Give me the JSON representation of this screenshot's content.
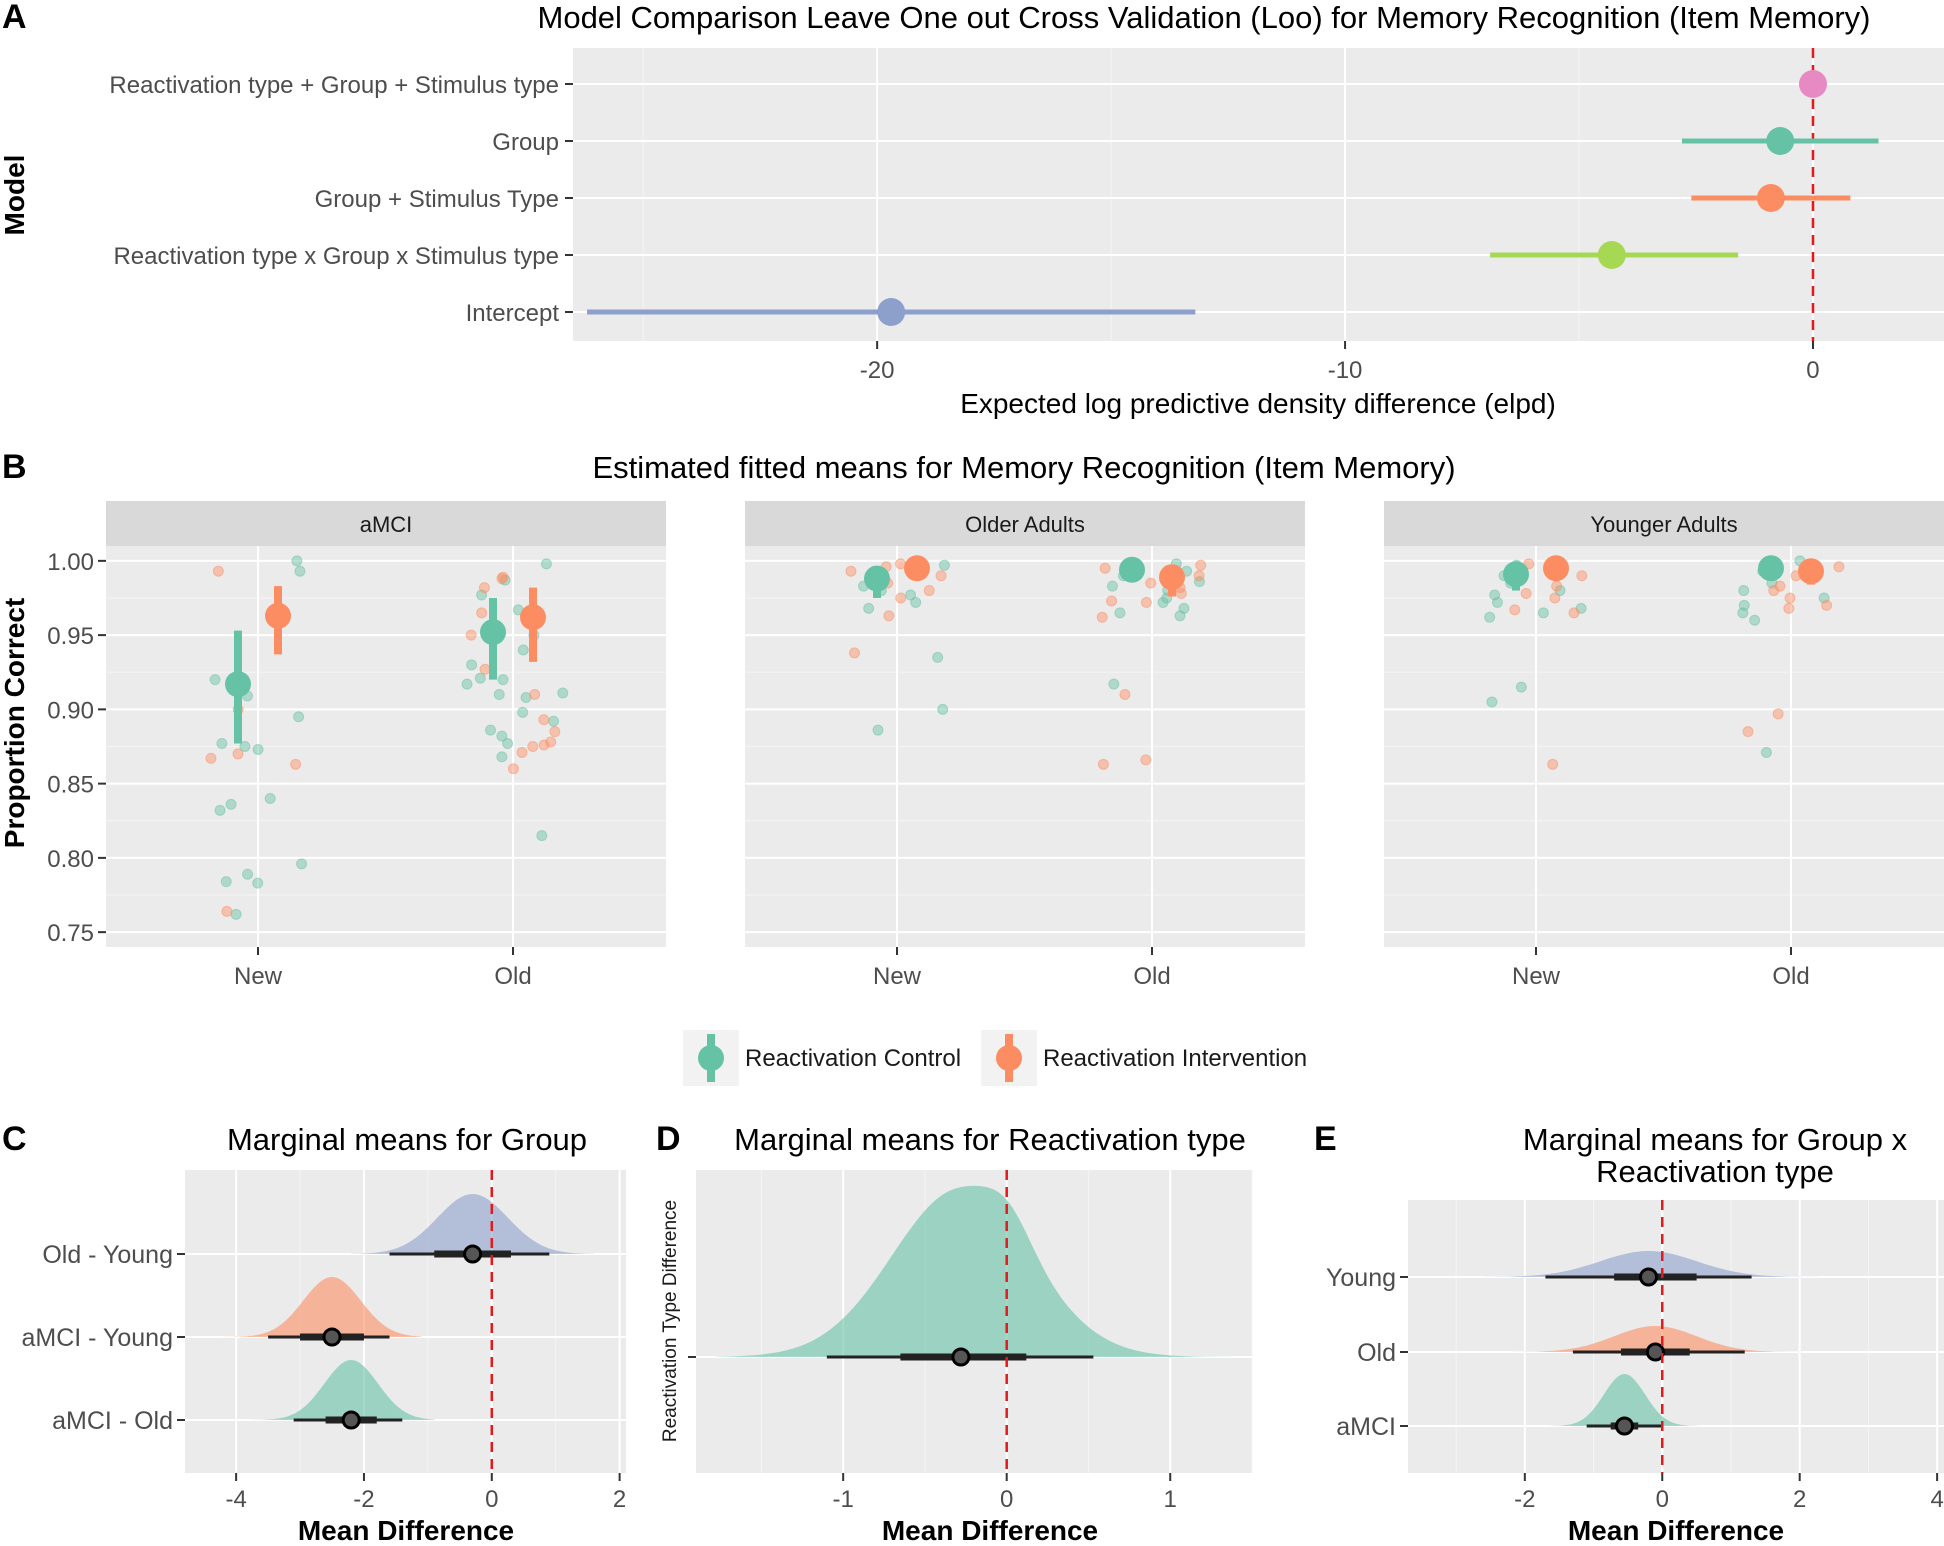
{
  "colors": {
    "control": "#66c2a5",
    "intervention": "#fc8d62",
    "panel_bg": "#ebebeb",
    "strip_bg": "#d9d9d9",
    "ref_line": "#e31a1c",
    "pink": "#e78ac3",
    "lime": "#a6d854",
    "blue": "#8da0cb"
  },
  "panel_a": {
    "letter": "A",
    "title": "Model Comparison Leave One out Cross Validation (Loo) for Memory Recognition (Item Memory)",
    "y_title": "Model",
    "x_title": "Expected log predictive density difference (elpd)",
    "x_ticks": [
      "-20",
      "-10",
      "0"
    ],
    "chart_data": {
      "type": "scatter",
      "title": "Model Comparison Leave One out Cross Validation (Loo) for Memory Recognition (Item Memory)",
      "xlabel": "Expected log predictive density difference (elpd)",
      "ylabel": "Model",
      "xlim": [
        -26.5,
        2.8
      ],
      "reference_line": 0,
      "models": [
        {
          "label": "Reactivation type + Group + Stimulus type",
          "estimate": 0.0,
          "lower": 0.0,
          "upper": 0.0,
          "color": "#e78ac3"
        },
        {
          "label": "Group",
          "estimate": -0.7,
          "lower": -2.8,
          "upper": 1.4,
          "color": "#66c2a5"
        },
        {
          "label": "Group + Stimulus Type",
          "estimate": -0.9,
          "lower": -2.6,
          "upper": 0.8,
          "color": "#fc8d62"
        },
        {
          "label": "Reactivation type x Group x Stimulus type",
          "estimate": -4.3,
          "lower": -6.9,
          "upper": -1.6,
          "color": "#a6d854"
        },
        {
          "label": "Intercept",
          "estimate": -19.7,
          "lower": -26.2,
          "upper": -13.2,
          "color": "#8da0cb"
        }
      ]
    }
  },
  "panel_b": {
    "letter": "B",
    "title": "Estimated fitted means for Memory Recognition (Item Memory)",
    "y_title": "Proportion Correct",
    "y_ticks": [
      "0.75",
      "0.80",
      "0.85",
      "0.90",
      "0.95",
      "1.00"
    ],
    "legend": {
      "control": "Reactivation Control",
      "intervention": "Reactivation Intervention"
    },
    "chart_data": {
      "type": "scatter",
      "title": "Estimated fitted means for Memory Recognition (Item Memory)",
      "ylabel": "Proportion Correct",
      "ylim": [
        0.74,
        1.01
      ],
      "categories": [
        "New",
        "Old"
      ],
      "series_names": [
        "Reactivation Control",
        "Reactivation Intervention"
      ],
      "facets": [
        {
          "label": "aMCI",
          "means": [
            {
              "stimulus": "New",
              "series": "Reactivation Control",
              "mean": 0.917,
              "lower": 0.877,
              "upper": 0.953
            },
            {
              "stimulus": "New",
              "series": "Reactivation Intervention",
              "mean": 0.963,
              "lower": 0.937,
              "upper": 0.983
            },
            {
              "stimulus": "Old",
              "series": "Reactivation Control",
              "mean": 0.952,
              "lower": 0.92,
              "upper": 0.975
            },
            {
              "stimulus": "Old",
              "series": "Reactivation Intervention",
              "mean": 0.962,
              "lower": 0.932,
              "upper": 0.982
            }
          ],
          "points": [
            {
              "stimulus": "New",
              "series": "Reactivation Control",
              "values": [
                1.0,
                0.993,
                0.92,
                0.909,
                0.895,
                0.877,
                0.875,
                0.873,
                0.84,
                0.836,
                0.832,
                0.796,
                0.789,
                0.784,
                0.783,
                0.762
              ]
            },
            {
              "stimulus": "New",
              "series": "Reactivation Intervention",
              "values": [
                0.993,
                0.968,
                0.9,
                0.87,
                0.867,
                0.863,
                0.764
              ]
            },
            {
              "stimulus": "Old",
              "series": "Reactivation Control",
              "values": [
                0.998,
                0.987,
                0.977,
                0.967,
                0.955,
                0.95,
                0.94,
                0.93,
                0.921,
                0.92,
                0.917,
                0.911,
                0.91,
                0.908,
                0.898,
                0.892,
                0.886,
                0.882,
                0.877,
                0.868,
                0.815
              ]
            },
            {
              "stimulus": "Old",
              "series": "Reactivation Intervention",
              "values": [
                0.989,
                0.988,
                0.982,
                0.965,
                0.962,
                0.95,
                0.927,
                0.91,
                0.893,
                0.885,
                0.878,
                0.876,
                0.875,
                0.871,
                0.86
              ]
            }
          ]
        },
        {
          "label": "Older Adults",
          "means": [
            {
              "stimulus": "New",
              "series": "Reactivation Control",
              "mean": 0.988,
              "lower": 0.975,
              "upper": 0.996
            },
            {
              "stimulus": "New",
              "series": "Reactivation Intervention",
              "mean": 0.995,
              "lower": 0.988,
              "upper": 0.999
            },
            {
              "stimulus": "Old",
              "series": "Reactivation Control",
              "mean": 0.994,
              "lower": 0.986,
              "upper": 0.998
            },
            {
              "stimulus": "Old",
              "series": "Reactivation Intervention",
              "mean": 0.989,
              "lower": 0.976,
              "upper": 0.997
            }
          ],
          "points": [
            {
              "stimulus": "New",
              "series": "Reactivation Control",
              "values": [
                0.997,
                0.993,
                0.987,
                0.983,
                0.98,
                0.977,
                0.972,
                0.968,
                0.935,
                0.9,
                0.886
              ]
            },
            {
              "stimulus": "New",
              "series": "Reactivation Intervention",
              "values": [
                0.998,
                0.996,
                0.993,
                0.99,
                0.985,
                0.98,
                0.975,
                0.963,
                0.938
              ]
            },
            {
              "stimulus": "Old",
              "series": "Reactivation Control",
              "values": [
                0.998,
                0.993,
                0.99,
                0.986,
                0.983,
                0.98,
                0.975,
                0.972,
                0.968,
                0.965,
                0.963,
                0.917
              ]
            },
            {
              "stimulus": "Old",
              "series": "Reactivation Intervention",
              "values": [
                0.997,
                0.995,
                0.99,
                0.985,
                0.982,
                0.978,
                0.973,
                0.972,
                0.962,
                0.91,
                0.866,
                0.863
              ]
            }
          ]
        },
        {
          "label": "Younger Adults",
          "means": [
            {
              "stimulus": "New",
              "series": "Reactivation Control",
              "mean": 0.991,
              "lower": 0.98,
              "upper": 0.997
            },
            {
              "stimulus": "New",
              "series": "Reactivation Intervention",
              "mean": 0.995,
              "lower": 0.988,
              "upper": 0.999
            },
            {
              "stimulus": "Old",
              "series": "Reactivation Control",
              "mean": 0.995,
              "lower": 0.988,
              "upper": 0.999
            },
            {
              "stimulus": "Old",
              "series": "Reactivation Intervention",
              "mean": 0.993,
              "lower": 0.984,
              "upper": 0.998
            }
          ],
          "points": [
            {
              "stimulus": "New",
              "series": "Reactivation Control",
              "values": [
                0.997,
                0.99,
                0.985,
                0.98,
                0.977,
                0.972,
                0.968,
                0.965,
                0.962,
                0.915,
                0.905
              ]
            },
            {
              "stimulus": "New",
              "series": "Reactivation Intervention",
              "values": [
                0.998,
                0.994,
                0.99,
                0.983,
                0.978,
                0.975,
                0.967,
                0.965,
                0.863
              ]
            },
            {
              "stimulus": "Old",
              "series": "Reactivation Control",
              "values": [
                1.0,
                0.993,
                0.985,
                0.98,
                0.975,
                0.97,
                0.965,
                0.96,
                0.871
              ]
            },
            {
              "stimulus": "Old",
              "series": "Reactivation Intervention",
              "values": [
                0.996,
                0.99,
                0.983,
                0.98,
                0.975,
                0.97,
                0.968,
                0.897,
                0.885
              ]
            }
          ]
        }
      ]
    }
  },
  "panel_c": {
    "letter": "C",
    "title": "Marginal means for Group",
    "x_title": "Mean Difference",
    "x_ticks": [
      "-4",
      "-2",
      "0",
      "2"
    ],
    "chart_data": {
      "type": "area",
      "title": "Marginal means for Group",
      "xlabel": "Mean Difference",
      "xlim": [
        -4.8,
        2.1
      ],
      "reference_line": 0,
      "distributions": [
        {
          "label": "Old - Young",
          "median": -0.3,
          "ci66": [
            -0.9,
            0.3
          ],
          "ci95": [
            -1.6,
            0.9
          ],
          "range": [
            -2.2,
            1.6
          ],
          "sd": 0.55,
          "color": "#8da0cb"
        },
        {
          "label": "aMCI - Young",
          "median": -2.5,
          "ci66": [
            -3.0,
            -2.0
          ],
          "ci95": [
            -3.5,
            -1.6
          ],
          "range": [
            -4.3,
            -1.1
          ],
          "sd": 0.45,
          "color": "#fc8d62"
        },
        {
          "label": "aMCI - Old",
          "median": -2.2,
          "ci66": [
            -2.6,
            -1.8
          ],
          "ci95": [
            -3.1,
            -1.4
          ],
          "range": [
            -3.8,
            -0.9
          ],
          "sd": 0.42,
          "color": "#66c2a5"
        }
      ]
    }
  },
  "panel_d": {
    "letter": "D",
    "title": "Marginal means for Reactivation type",
    "x_title": "Mean Difference",
    "y_title": "Reactivation Type Difference",
    "x_ticks": [
      "-1",
      "0",
      "1"
    ],
    "chart_data": {
      "type": "area",
      "title": "Marginal means for Reactivation type",
      "xlabel": "Mean Difference",
      "ylabel": "Reactivation Type Difference",
      "xlim": [
        -1.9,
        1.5
      ],
      "reference_line": 0,
      "distributions": [
        {
          "label": "",
          "median": -0.28,
          "ci66": [
            -0.65,
            0.12
          ],
          "ci95": [
            -1.1,
            0.53
          ],
          "range": [
            -1.78,
            1.38
          ],
          "sd": 0.42,
          "color": "#66c2a5"
        }
      ]
    }
  },
  "panel_e": {
    "letter": "E",
    "title_line1": "Marginal means for Group x",
    "title_line2": "Reactivation type",
    "x_title": "Mean Difference",
    "x_ticks": [
      "-2",
      "0",
      "2",
      "4"
    ],
    "chart_data": {
      "type": "area",
      "title": "Marginal means for Group x Reactivation type",
      "xlabel": "Mean Difference",
      "xlim": [
        -3.7,
        4.1
      ],
      "reference_line": 0,
      "distributions": [
        {
          "label": "Young",
          "median": -0.2,
          "ci66": [
            -0.7,
            0.5
          ],
          "ci95": [
            -1.7,
            1.3
          ],
          "range": [
            -2.6,
            2.5
          ],
          "sd": 0.7,
          "color": "#8da0cb"
        },
        {
          "label": "Old",
          "median": -0.1,
          "ci66": [
            -0.6,
            0.4
          ],
          "ci95": [
            -1.3,
            1.2
          ],
          "range": [
            -2.2,
            2.1
          ],
          "sd": 0.6,
          "color": "#fc8d62"
        },
        {
          "label": "aMCI",
          "median": -0.55,
          "ci66": [
            -0.75,
            -0.35
          ],
          "ci95": [
            -1.1,
            0.0
          ],
          "range": [
            -1.7,
            0.8
          ],
          "sd": 0.3,
          "color": "#66c2a5"
        }
      ]
    }
  }
}
